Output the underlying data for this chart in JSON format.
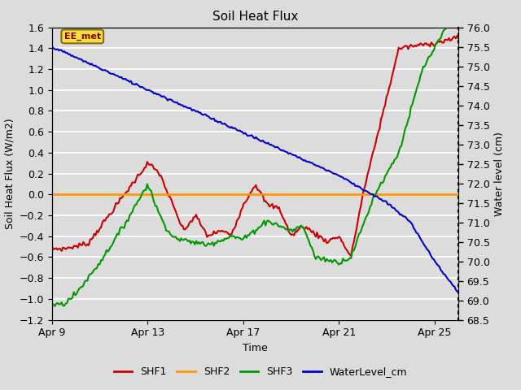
{
  "title": "Soil Heat Flux",
  "xlabel": "Time",
  "ylabel_left": "Soil Heat Flux (W/m2)",
  "ylabel_right": "Water level (cm)",
  "annotation_text": "EE_met",
  "plot_bg_color": "#dcdcdc",
  "fig_bg_color": "#dcdcdc",
  "ylim_left": [
    -1.2,
    1.6
  ],
  "ylim_right": [
    68.5,
    76.0
  ],
  "yticks_left": [
    -1.2,
    -1.0,
    -0.8,
    -0.6,
    -0.4,
    -0.2,
    0.0,
    0.2,
    0.4,
    0.6,
    0.8,
    1.0,
    1.2,
    1.4,
    1.6
  ],
  "yticks_right": [
    68.5,
    69.0,
    69.5,
    70.0,
    70.5,
    71.0,
    71.5,
    72.0,
    72.5,
    73.0,
    73.5,
    74.0,
    74.5,
    75.0,
    75.5,
    76.0
  ],
  "xtick_labels": [
    "Apr 9",
    "Apr 13",
    "Apr 17",
    "Apr 21",
    "Apr 25"
  ],
  "xtick_positions": [
    0,
    4,
    8,
    12,
    16
  ],
  "xlim": [
    0,
    17
  ],
  "colors": {
    "SHF1": "#cc0000",
    "SHF2": "#ff9900",
    "SHF3": "#009900",
    "WaterLevel": "#0000cc"
  },
  "legend_labels": [
    "SHF1",
    "SHF2",
    "SHF3",
    "WaterLevel_cm"
  ],
  "grid_color": "#ffffff"
}
